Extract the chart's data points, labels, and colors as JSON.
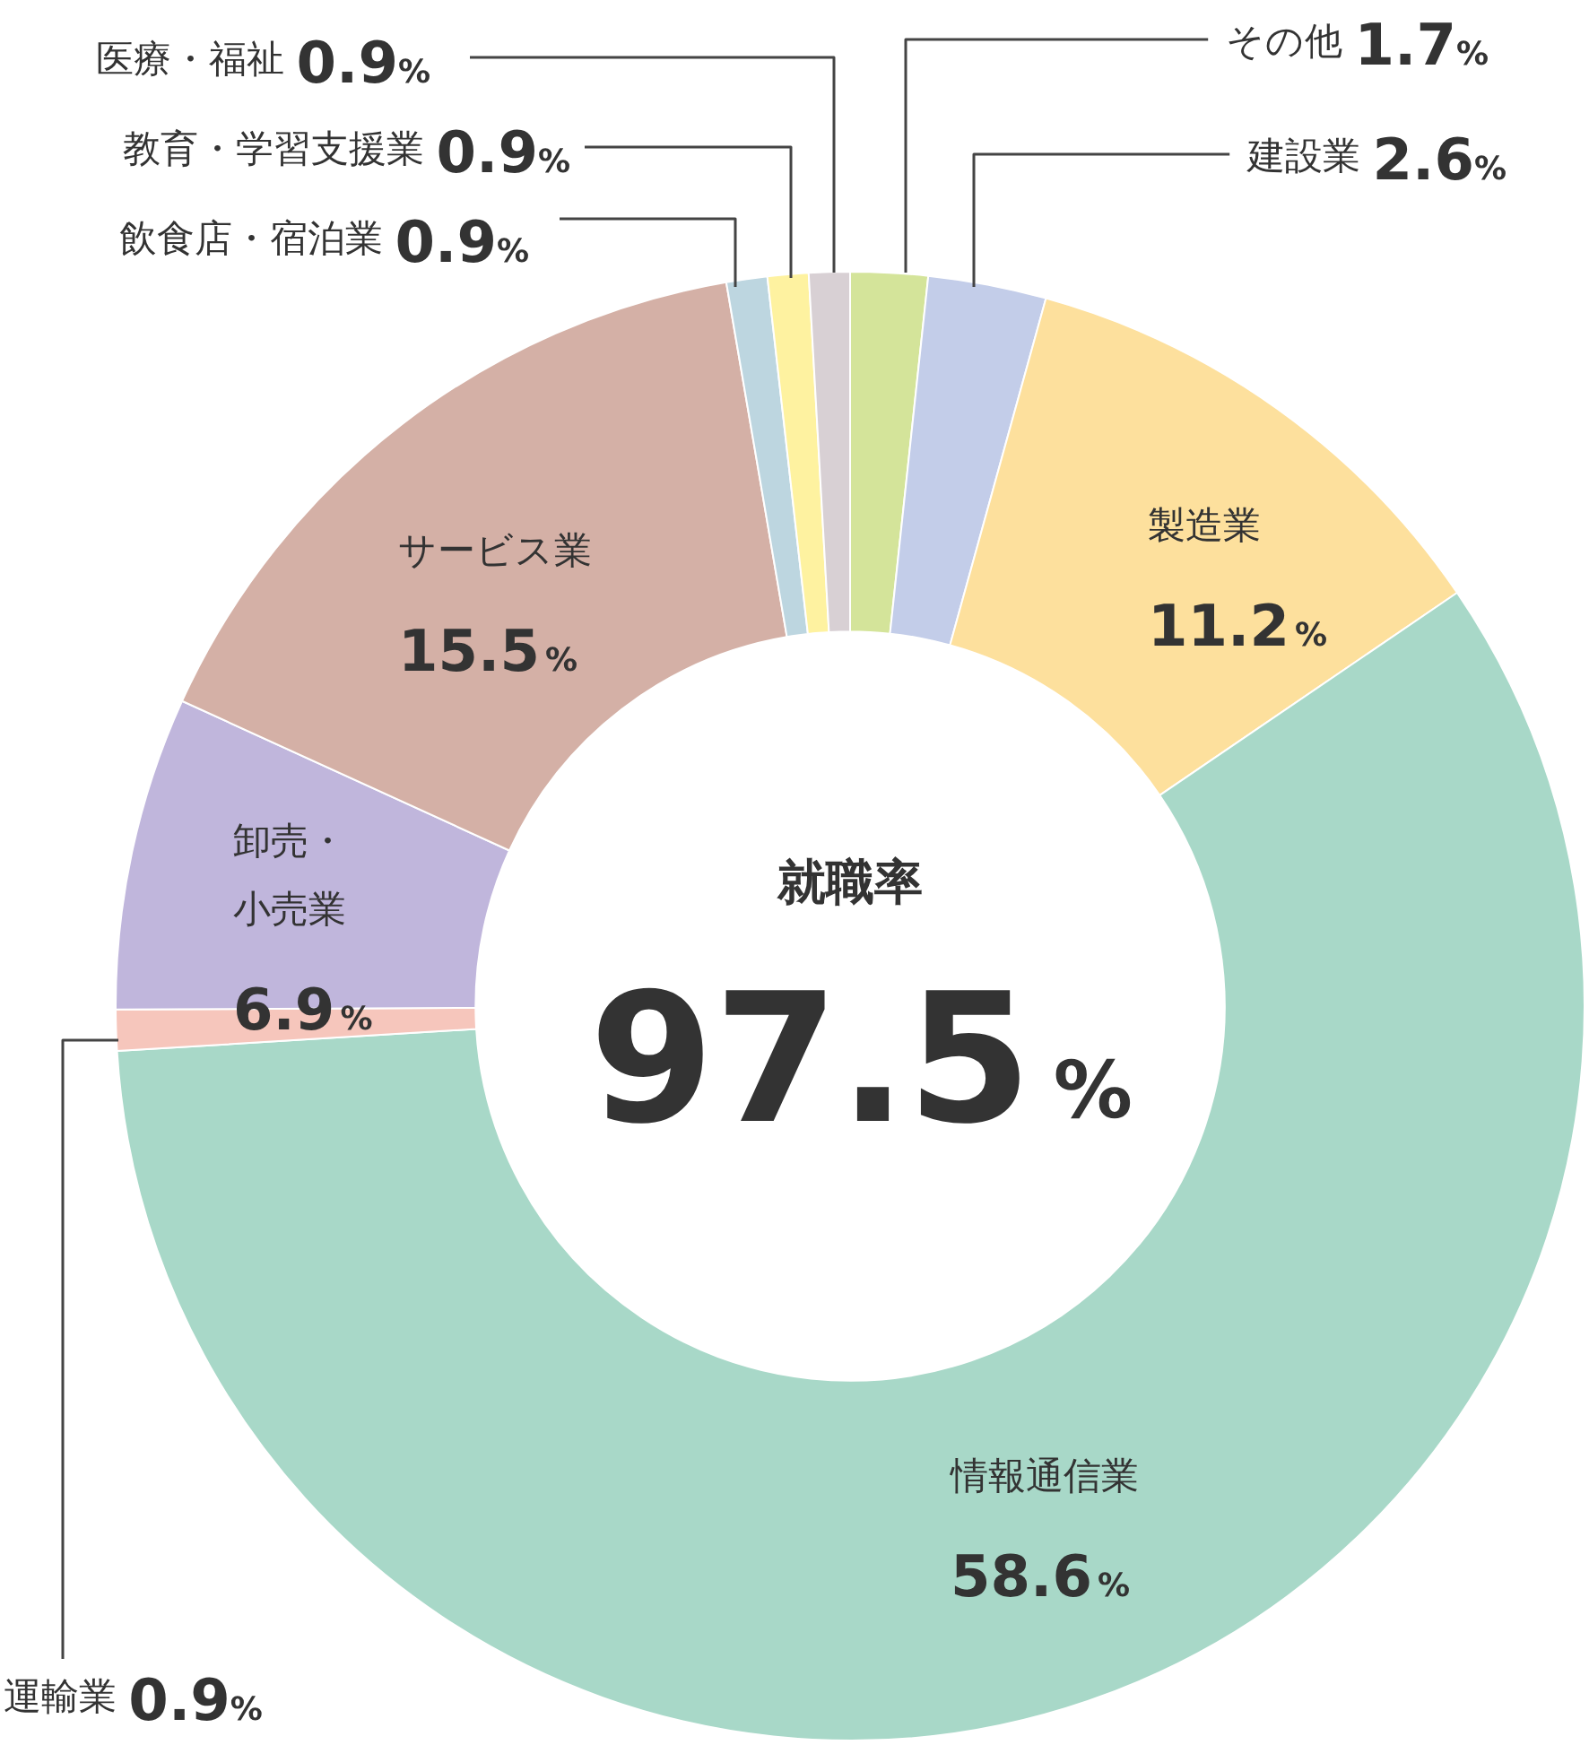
{
  "chart_data": {
    "type": "donut",
    "title": "就職率",
    "annotations": [
      "97.5%"
    ],
    "categories": [
      "その他",
      "建設業",
      "製造業",
      "情報通信業",
      "運輸業",
      "卸売・小売業",
      "サービス業",
      "飲食店・宿泊業",
      "教育・学習支援業",
      "医療・福祉"
    ],
    "values": [
      1.7,
      2.6,
      11.2,
      58.6,
      0.9,
      6.9,
      15.5,
      0.9,
      0.9,
      0.9
    ],
    "value_labels": [
      "1.7%",
      "2.6%",
      "11.2%",
      "58.6%",
      "0.9%",
      "6.9%",
      "15.5%",
      "0.9%",
      "0.9%",
      "0.9%"
    ],
    "colors": [
      "#d4e49a",
      "#c3cde9",
      "#fde09d",
      "#a8d8c8",
      "#f6c6bc",
      "#c0b6dc",
      "#d4b0a6",
      "#bdd6e0",
      "#fef2a0",
      "#d8d0d4"
    ],
    "legend": false
  }
}
